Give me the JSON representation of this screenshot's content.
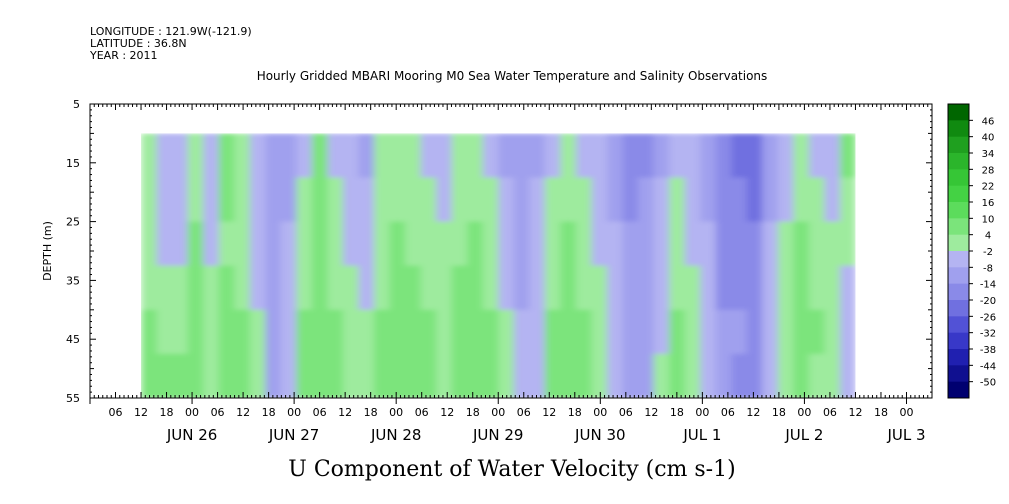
{
  "header": {
    "longitude": "LONGITUDE : 121.9W(-121.9)",
    "latitude": "LATITUDE : 36.8N",
    "year": "YEAR : 2011"
  },
  "chart_data": {
    "type": "heatmap",
    "title": "Hourly Gridded MBARI Mooring M0 Sea Water Temperature and Salinity Observations",
    "caption": "U Component of Water Velocity (cm s-1)",
    "ylabel": "DEPTH (m)",
    "y_axis": {
      "range": [
        5,
        55
      ],
      "inverted": true,
      "ticks": [
        5,
        15,
        25,
        35,
        45,
        55
      ]
    },
    "x_axis": {
      "start": "2011-06-25 00:00",
      "end": "2011-07-03 06:00",
      "hour_ticks": [
        "06",
        "12",
        "18",
        "00",
        "06",
        "12",
        "18",
        "00",
        "06",
        "12",
        "18",
        "00",
        "06",
        "12",
        "18",
        "00",
        "06",
        "12",
        "18",
        "00",
        "06",
        "12",
        "18",
        "00",
        "06",
        "12",
        "18",
        "00",
        "06",
        "12",
        "18",
        "00"
      ],
      "day_labels": [
        "JUN 26",
        "JUN 27",
        "JUN 28",
        "JUN 29",
        "JUN 30",
        "JUL  1",
        "JUL  2",
        "JUL  3"
      ]
    },
    "data_extent": {
      "time_start": "2011-06-25 12:00",
      "time_end": "2011-07-02 12:00",
      "depth_top": 10,
      "depth_bottom": 55
    },
    "colorbar": {
      "ticks": [
        46,
        40,
        34,
        28,
        22,
        16,
        10,
        4,
        -2,
        -8,
        -14,
        -20,
        -26,
        -32,
        -38,
        -44,
        -50
      ],
      "colors": [
        "#006600",
        "#108a10",
        "#1fa01f",
        "#2bb52b",
        "#36c636",
        "#44d244",
        "#5cdc5c",
        "#7be47b",
        "#9eeb9e",
        "#b4b4f2",
        "#a0a0ee",
        "#8a8ae8",
        "#7070e0",
        "#5252d6",
        "#3838c8",
        "#2020b0",
        "#101090",
        "#000070"
      ]
    },
    "u_velocity_by_hour": [
      [
        -2,
        -5,
        -8,
        2,
        -6,
        4,
        -2,
        -8,
        -12,
        -10,
        -4,
        6,
        -4,
        -8,
        -10,
        -2,
        2,
        -2,
        -4,
        -6,
        -2,
        0,
        -4,
        -10,
        -14,
        -10,
        -4,
        2,
        -4,
        -8,
        -12,
        -18,
        -16,
        -10,
        -4,
        -8,
        -12,
        -20,
        -22,
        -24,
        -12,
        -6,
        2,
        -4,
        -6,
        8
      ],
      [
        -2,
        -6,
        -6,
        2,
        -4,
        4,
        0,
        -8,
        -12,
        -10,
        -2,
        4,
        -2,
        -6,
        -8,
        0,
        2,
        0,
        -2,
        -4,
        0,
        2,
        -2,
        -8,
        -12,
        -8,
        -2,
        2,
        -2,
        -6,
        -10,
        -16,
        -14,
        -8,
        -2,
        -6,
        -10,
        -18,
        -20,
        -22,
        -10,
        -4,
        2,
        -2,
        -4,
        2
      ],
      [
        0,
        -4,
        -4,
        4,
        -4,
        2,
        0,
        -6,
        -10,
        -8,
        0,
        4,
        0,
        -4,
        -6,
        0,
        4,
        2,
        0,
        -2,
        2,
        4,
        0,
        -6,
        -10,
        -6,
        0,
        4,
        0,
        -4,
        -8,
        -14,
        -12,
        -6,
        0,
        -4,
        -8,
        -16,
        -18,
        -20,
        -8,
        -2,
        4,
        0,
        -2,
        -2
      ],
      [
        2,
        0,
        -2,
        6,
        -2,
        4,
        2,
        -4,
        -10,
        -8,
        2,
        6,
        2,
        -2,
        -4,
        2,
        4,
        4,
        2,
        0,
        4,
        6,
        2,
        -4,
        -10,
        -6,
        2,
        4,
        2,
        -2,
        -6,
        -12,
        -12,
        -6,
        2,
        -2,
        -6,
        -16,
        -16,
        -18,
        -6,
        0,
        6,
        2,
        0,
        -4
      ],
      [
        4,
        2,
        2,
        8,
        0,
        6,
        4,
        -2,
        -10,
        -6,
        4,
        8,
        4,
        0,
        -2,
        4,
        6,
        6,
        4,
        2,
        6,
        8,
        4,
        -2,
        -8,
        -4,
        4,
        6,
        4,
        0,
        -4,
        -10,
        -10,
        -4,
        4,
        0,
        -4,
        -14,
        -14,
        -16,
        -4,
        2,
        6,
        4,
        2,
        -4
      ],
      [
        4,
        4,
        4,
        8,
        2,
        6,
        4,
        -2,
        -10,
        -6,
        4,
        8,
        4,
        0,
        -2,
        4,
        4,
        6,
        4,
        2,
        6,
        8,
        4,
        -2,
        -8,
        -4,
        4,
        6,
        4,
        0,
        -4,
        -10,
        -10,
        -2,
        6,
        2,
        -4,
        -14,
        -16,
        -18,
        -4,
        2,
        4,
        2,
        0,
        -6
      ]
    ]
  }
}
